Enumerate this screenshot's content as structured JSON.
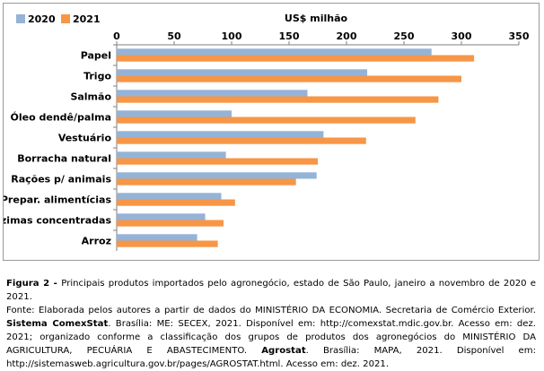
{
  "chart_data": {
    "type": "bar",
    "orientation": "horizontal",
    "title": "",
    "axis_unit": "US$ milhão",
    "xlim": [
      0,
      350
    ],
    "x_ticks": [
      0,
      50,
      100,
      150,
      200,
      250,
      300,
      350
    ],
    "x_tick_labels": [
      "0",
      "50",
      "100",
      "150",
      "200",
      "250",
      "300",
      "350"
    ],
    "x_axis_position": "top",
    "grid": false,
    "legend_position": "top-left",
    "categories": [
      "Papel",
      "Trigo",
      "Salmão",
      "Óleo dendê/palma",
      "Vestuário",
      "Borracha natural",
      "Rações p/ animais",
      "Prepar. alimentícias",
      "Enzimas concentradas",
      "Arroz"
    ],
    "series": [
      {
        "name": "2020",
        "color": "#95b3d7",
        "values": [
          274,
          218,
          166,
          100,
          180,
          95,
          174,
          91,
          77,
          70
        ]
      },
      {
        "name": "2021",
        "color": "#f79646",
        "values": [
          311,
          300,
          280,
          260,
          217,
          175,
          156,
          103,
          93,
          88
        ]
      }
    ]
  },
  "caption": {
    "figure_label": "Figura 2 - ",
    "figure_text": "Principais produtos importados pelo agronegócio, estado de São Paulo, janeiro a novembro de 2020 e 2021.",
    "source_text_1": "Fonte: Elaborada pelos autores a partir de dados do MINISTÉRIO DA ECONOMIA. Secretaria de Comércio Exterior. ",
    "source_bold_1": "Sistema ComexStat",
    "source_text_2": ". Brasília: ME: SECEX, 2021. Disponível em: http://comexstat.mdic.gov.br. Acesso em: dez. 2021; organizado conforme a classificação dos grupos de produtos dos agronegócios do MINISTÉRIO DA AGRICULTURA, PECUÁRIA E ABASTECIMENTO. ",
    "source_bold_2": "Agrostat",
    "source_text_3": ". Brasília: MAPA, 2021. Disponível em: http://sistemasweb.agricultura.gov.br/pages/AGROSTAT.html. Acesso em: dez. 2021."
  }
}
